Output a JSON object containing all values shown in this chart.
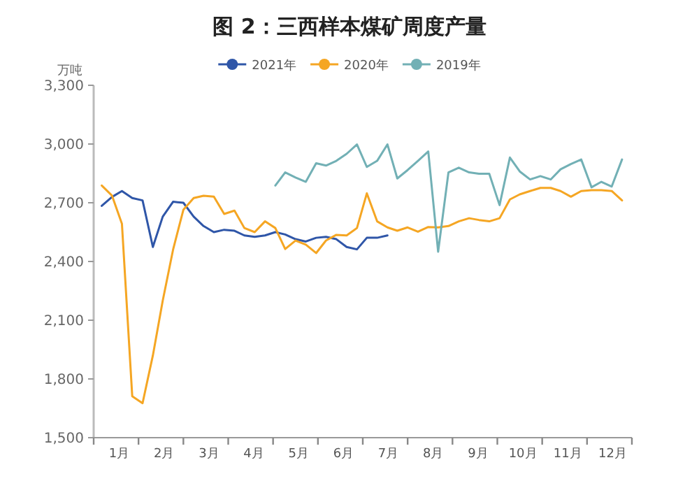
{
  "chart_data": {
    "type": "line",
    "title": "图 2：三西样本煤矿周度产量",
    "ylabel": "万吨",
    "legend": "top",
    "marker": "none",
    "grid": false,
    "x": [
      0.18,
      0.41,
      0.63,
      0.86,
      1.09,
      1.32,
      1.54,
      1.77,
      2.0,
      2.23,
      2.45,
      2.68,
      2.91,
      3.14,
      3.36,
      3.59,
      3.82,
      4.05,
      4.27,
      4.5,
      4.73,
      4.96,
      5.18,
      5.41,
      5.64,
      5.87,
      6.09,
      6.32,
      6.55,
      6.77,
      7.0,
      7.23,
      7.46,
      7.68,
      7.91,
      8.14,
      8.37,
      8.59,
      8.82,
      9.05,
      9.28,
      9.5,
      9.73,
      9.96,
      10.19,
      10.41,
      10.64,
      10.87,
      11.1,
      11.32,
      11.55,
      11.78
    ],
    "series": [
      {
        "name": "2021年",
        "color": "#2f56a8",
        "values": [
          2684,
          2730,
          2760,
          2724,
          2712,
          2474,
          2629,
          2705,
          2700,
          2629,
          2581,
          2550,
          2562,
          2557,
          2533,
          2526,
          2533,
          2550,
          2538,
          2514,
          2502,
          2521,
          2526,
          2514,
          2474,
          2462,
          2521,
          2521,
          2533,
          null,
          null,
          null,
          null,
          null,
          null,
          null,
          null,
          null,
          null,
          null,
          null,
          null,
          null,
          null,
          null,
          null,
          null,
          null,
          null,
          null,
          null,
          null
        ]
      },
      {
        "name": "2020年",
        "color": "#f5a623",
        "values": [
          2788,
          2736,
          2593,
          1712,
          1676,
          1920,
          2200,
          2460,
          2664,
          2724,
          2736,
          2731,
          2643,
          2660,
          2571,
          2550,
          2605,
          2571,
          2464,
          2507,
          2486,
          2443,
          2507,
          2536,
          2533,
          2571,
          2748,
          2605,
          2574,
          2557,
          2574,
          2552,
          2576,
          2574,
          2581,
          2605,
          2621,
          2612,
          2605,
          2621,
          2717,
          2743,
          2760,
          2776,
          2776,
          2760,
          2731,
          2760,
          2764,
          2764,
          2760,
          2712
        ]
      },
      {
        "name": "2019年",
        "color": "#72b0b5",
        "values": [
          null,
          null,
          null,
          null,
          null,
          null,
          null,
          null,
          null,
          null,
          null,
          null,
          null,
          null,
          null,
          null,
          null,
          2788,
          2855,
          2829,
          2807,
          2902,
          2890,
          2914,
          2950,
          2998,
          2883,
          2914,
          2998,
          2824,
          2867,
          2914,
          2962,
          2450,
          2855,
          2879,
          2855,
          2848,
          2848,
          2688,
          2931,
          2860,
          2819,
          2836,
          2819,
          2871,
          2898,
          2921,
          2779,
          2807,
          2783,
          2921
        ]
      }
    ],
    "xlim": [
      0,
      12
    ],
    "xticks": [
      {
        "value": 0,
        "label": null
      },
      {
        "value": 0.5,
        "label": "1月"
      },
      {
        "value": 1,
        "label": null
      },
      {
        "value": 1.5,
        "label": "2月"
      },
      {
        "value": 2,
        "label": null
      },
      {
        "value": 2.5,
        "label": "3月"
      },
      {
        "value": 3,
        "label": null
      },
      {
        "value": 3.5,
        "label": "4月"
      },
      {
        "value": 4,
        "label": null
      },
      {
        "value": 4.5,
        "label": "5月"
      },
      {
        "value": 5,
        "label": null
      },
      {
        "value": 5.5,
        "label": "6月"
      },
      {
        "value": 6,
        "label": null
      },
      {
        "value": 6.5,
        "label": "7月"
      },
      {
        "value": 7,
        "label": null
      },
      {
        "value": 7.5,
        "label": "8月"
      },
      {
        "value": 8,
        "label": null
      },
      {
        "value": 8.5,
        "label": "9月"
      },
      {
        "value": 9,
        "label": null
      },
      {
        "value": 9.5,
        "label": "10月"
      },
      {
        "value": 10,
        "label": null
      },
      {
        "value": 10.5,
        "label": "11月"
      },
      {
        "value": 11,
        "label": null
      },
      {
        "value": 11.5,
        "label": "12月"
      },
      {
        "value": 12,
        "label": null
      }
    ],
    "ylim": [
      1500,
      3300
    ],
    "yticks": [
      {
        "value": 1500,
        "label": "1,500"
      },
      {
        "value": 1800,
        "label": "1,800"
      },
      {
        "value": 2100,
        "label": "2,100"
      },
      {
        "value": 2400,
        "label": "2,400"
      },
      {
        "value": 2700,
        "label": "2,700"
      },
      {
        "value": 3000,
        "label": "3,000"
      },
      {
        "value": 3300,
        "label": "3,300"
      }
    ]
  }
}
